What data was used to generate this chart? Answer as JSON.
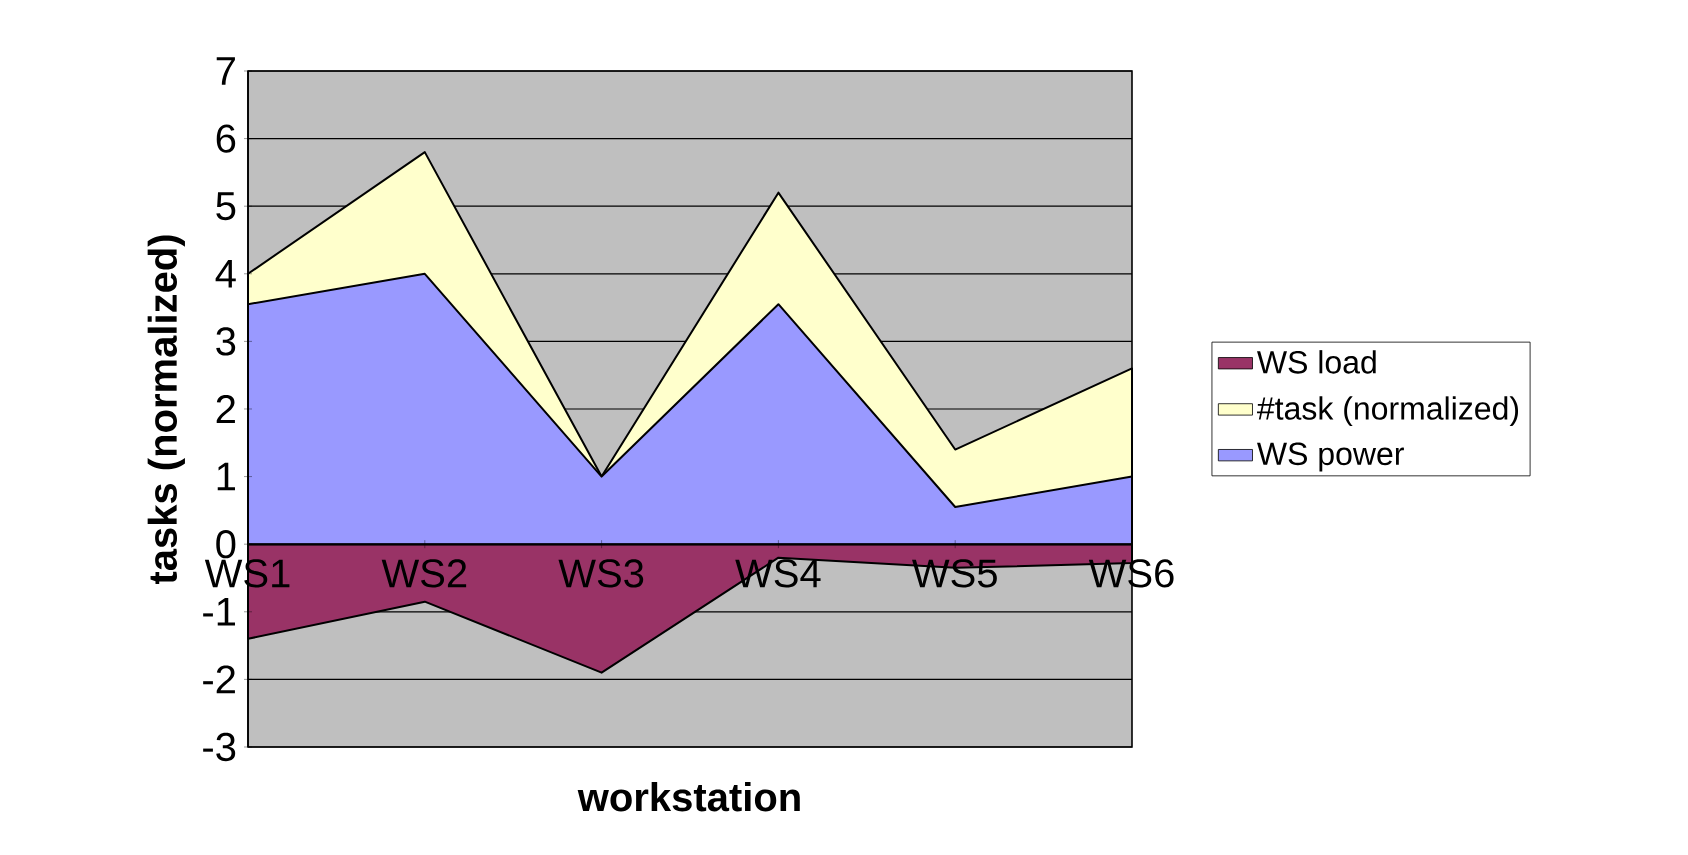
{
  "chart_data": {
    "type": "area",
    "xlabel": "workstation",
    "ylabel": "tasks (normalized)",
    "categories": [
      "WS1",
      "WS2",
      "WS3",
      "WS4",
      "WS5",
      "WS6"
    ],
    "series": [
      {
        "name": "WS load",
        "color": "#993366",
        "values": [
          -1.4,
          -0.85,
          -1.9,
          -0.2,
          -0.35,
          -0.28
        ]
      },
      {
        "name": "#task (normalized)",
        "color": "#ffffcc",
        "values": [
          4.0,
          5.8,
          1.0,
          5.2,
          1.4,
          2.6
        ]
      },
      {
        "name": "WS power",
        "color": "#9999ff",
        "values": [
          3.55,
          4.0,
          1.0,
          3.55,
          0.55,
          1.0
        ]
      }
    ],
    "ylim": [
      -3,
      7
    ],
    "yticks": [
      -3,
      -2,
      -1,
      0,
      1,
      2,
      3,
      4,
      5,
      6,
      7
    ],
    "grid": "y",
    "legend": "right"
  }
}
